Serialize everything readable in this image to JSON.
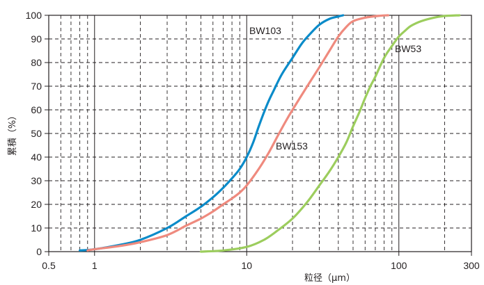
{
  "chart_data": {
    "type": "line",
    "title": "",
    "xlabel": "粒径（μm）",
    "ylabel": "累積（%）",
    "x_scale": "log",
    "xlim": [
      0.5,
      300
    ],
    "ylim": [
      0,
      100
    ],
    "x_ticks": [
      "0.5",
      "1",
      "10",
      "100",
      "300"
    ],
    "y_ticks": [
      "0",
      "10",
      "20",
      "30",
      "40",
      "50",
      "60",
      "70",
      "80",
      "90",
      "100"
    ],
    "grid": true,
    "colors": {
      "axis": "#231f20",
      "grid": "#231f20"
    },
    "series": [
      {
        "name": "BW103",
        "color": "#0a8bc9",
        "points": [
          [
            0.8,
            0.5
          ],
          [
            1,
            1
          ],
          [
            1.5,
            3
          ],
          [
            2,
            5
          ],
          [
            3,
            10
          ],
          [
            4,
            15
          ],
          [
            5,
            19
          ],
          [
            6,
            23
          ],
          [
            7,
            27
          ],
          [
            8,
            31
          ],
          [
            9,
            35
          ],
          [
            10,
            40
          ],
          [
            11,
            46
          ],
          [
            12,
            53
          ],
          [
            13,
            59
          ],
          [
            14,
            64
          ],
          [
            15,
            68
          ],
          [
            17,
            75
          ],
          [
            20,
            82
          ],
          [
            23,
            88
          ],
          [
            26,
            92
          ],
          [
            30,
            96
          ],
          [
            35,
            98.5
          ],
          [
            40,
            99.5
          ],
          [
            43,
            100
          ]
        ]
      },
      {
        "name": "BW153",
        "color": "#ef8a7e",
        "points": [
          [
            0.9,
            0.5
          ],
          [
            1,
            1
          ],
          [
            1.5,
            2.5
          ],
          [
            2,
            4
          ],
          [
            3,
            7
          ],
          [
            4,
            11
          ],
          [
            5,
            14
          ],
          [
            6,
            17
          ],
          [
            7,
            20
          ],
          [
            8,
            22.5
          ],
          [
            9,
            25
          ],
          [
            10,
            28
          ],
          [
            12,
            35
          ],
          [
            14,
            42
          ],
          [
            16,
            49
          ],
          [
            18,
            55
          ],
          [
            20,
            60
          ],
          [
            25,
            70
          ],
          [
            30,
            78
          ],
          [
            35,
            85
          ],
          [
            40,
            91
          ],
          [
            45,
            95
          ],
          [
            50,
            97.5
          ],
          [
            60,
            99
          ],
          [
            75,
            99.8
          ],
          [
            85,
            100
          ]
        ]
      },
      {
        "name": "BW53",
        "color": "#9ccd5d",
        "points": [
          [
            5,
            0
          ],
          [
            7,
            0.5
          ],
          [
            10,
            2
          ],
          [
            13,
            5
          ],
          [
            16,
            9
          ],
          [
            20,
            14
          ],
          [
            25,
            21
          ],
          [
            30,
            28
          ],
          [
            35,
            34
          ],
          [
            40,
            40
          ],
          [
            45,
            46
          ],
          [
            50,
            53
          ],
          [
            55,
            59
          ],
          [
            60,
            65
          ],
          [
            65,
            70
          ],
          [
            70,
            74
          ],
          [
            80,
            82
          ],
          [
            90,
            87
          ],
          [
            100,
            91
          ],
          [
            110,
            93.5
          ],
          [
            120,
            95.5
          ],
          [
            140,
            97.5
          ],
          [
            170,
            99
          ],
          [
            200,
            99.7
          ],
          [
            250,
            100
          ]
        ]
      }
    ]
  }
}
